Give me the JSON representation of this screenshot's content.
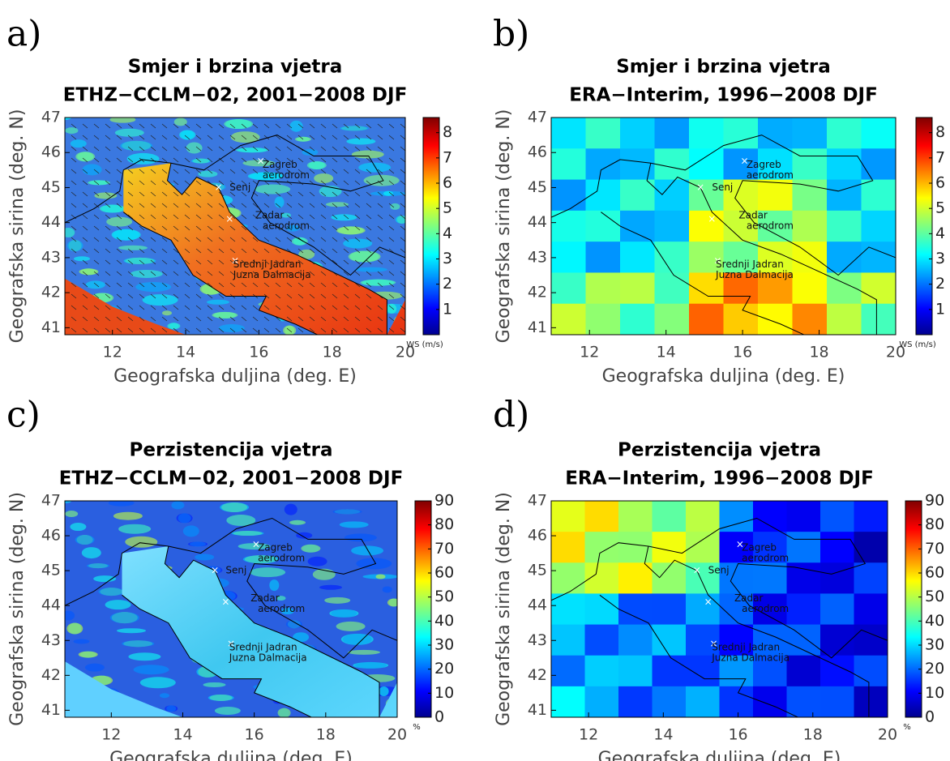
{
  "panels": [
    {
      "label": "a)",
      "title": "Smjer i brzina vjetra",
      "subtitle": "ETHZ−CCLM−02, 2001−2008 DJF",
      "xlabel": "Geografska duljina (deg. E)",
      "ylabel": "Geografska sirina (deg. N)",
      "xlim": [
        10.7,
        20
      ],
      "ylim": [
        40.8,
        47
      ],
      "xticks": [
        12,
        14,
        16,
        18,
        20
      ],
      "yticks": [
        41,
        42,
        43,
        44,
        45,
        46,
        47
      ],
      "colorbar": {
        "lim": [
          0,
          8.6
        ],
        "ticks": [
          1,
          2,
          3,
          4,
          5,
          6,
          7,
          8
        ],
        "unit": "WS (m/s)"
      },
      "places": [
        "Zagreb",
        "aerodrom",
        "Senj",
        "Zadar",
        "aerodrom",
        "Srednji Jadran",
        "Juzna Dalmacija"
      ]
    },
    {
      "label": "b)",
      "title": "Smjer i brzina vjetra",
      "subtitle": "ERA−Interim, 1996−2008 DJF",
      "xlabel": "Geografska duljina (deg. E)",
      "ylabel": "Geografska sirina (deg. N)",
      "xlim": [
        11,
        20
      ],
      "ylim": [
        40.8,
        47
      ],
      "xticks": [
        12,
        14,
        16,
        18,
        20
      ],
      "yticks": [
        41,
        42,
        43,
        44,
        45,
        46,
        47
      ],
      "colorbar": {
        "lim": [
          0,
          8.6
        ],
        "ticks": [
          1,
          2,
          3,
          4,
          5,
          6,
          7,
          8
        ],
        "unit": "WS (m/s)"
      },
      "places": [
        "Zagreb",
        "aerodrom",
        "Senj",
        "Zadar",
        "aerodrom",
        "Srednji Jadran",
        "Juzna Dalmacija"
      ]
    },
    {
      "label": "c)",
      "title": "Perzistencija vjetra",
      "subtitle": "ETHZ−CCLM−02, 2001−2008 DJF",
      "xlabel": "Geografska duljina (deg. E)",
      "ylabel": "Geografska sirina (deg. N)",
      "xlim": [
        10.7,
        20
      ],
      "ylim": [
        40.8,
        47
      ],
      "xticks": [
        12,
        14,
        16,
        18,
        20
      ],
      "yticks": [
        41,
        42,
        43,
        44,
        45,
        46,
        47
      ],
      "colorbar": {
        "lim": [
          0,
          90
        ],
        "ticks": [
          0,
          10,
          20,
          30,
          40,
          50,
          60,
          70,
          80,
          90
        ],
        "unit": "%"
      },
      "places": [
        "Zagreb",
        "aerodrom",
        "Senj",
        "Zadar",
        "aerodrom",
        "Srednji Jadran",
        "Juzna Dalmacija"
      ]
    },
    {
      "label": "d)",
      "title": "Perzistencija vjetra",
      "subtitle": "ERA−Interim, 1996−2008 DJF",
      "xlabel": "Geografska duljina (deg. E)",
      "ylabel": "Geografska sirina (deg. N)",
      "xlim": [
        11,
        20
      ],
      "ylim": [
        40.8,
        47
      ],
      "xticks": [
        12,
        14,
        16,
        18,
        20
      ],
      "yticks": [
        41,
        42,
        43,
        44,
        45,
        46,
        47
      ],
      "colorbar": {
        "lim": [
          0,
          90
        ],
        "ticks": [
          0,
          10,
          20,
          30,
          40,
          50,
          60,
          70,
          80,
          90
        ],
        "unit": "%"
      },
      "places": [
        "Zagreb",
        "aerodrom",
        "Senj",
        "Zadar",
        "aerodrom",
        "Srednji Jadran",
        "Juzna Dalmacija"
      ]
    }
  ]
}
